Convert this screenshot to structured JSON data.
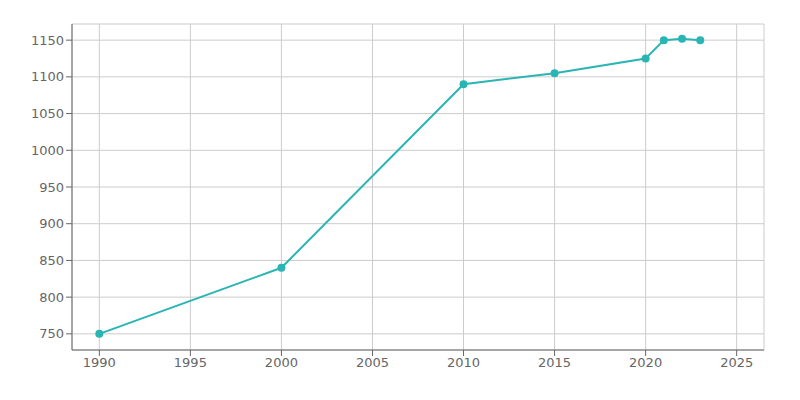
{
  "chart_data": {
    "type": "line",
    "x": [
      1990,
      2000,
      2010,
      2015,
      2020,
      2021,
      2022,
      2023
    ],
    "values": [
      750,
      840,
      1090,
      1105,
      1125,
      1150,
      1152,
      1150
    ],
    "color": "#2ab5b5",
    "marker": "circle",
    "xlim": [
      1988.5,
      2026.5
    ],
    "ylim": [
      728,
      1172
    ],
    "xticks": [
      1990,
      1995,
      2000,
      2005,
      2010,
      2015,
      2020,
      2025
    ],
    "yticks": [
      750,
      800,
      850,
      900,
      950,
      1000,
      1050,
      1100,
      1150
    ],
    "grid": true
  }
}
